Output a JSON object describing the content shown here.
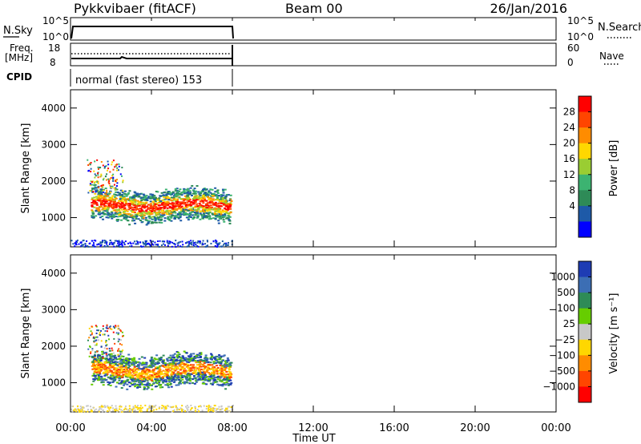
{
  "header": {
    "station": "Pykkvibaer (fitACF)",
    "beam": "Beam 00",
    "date": "26/Jan/2016"
  },
  "panels": {
    "nsky": {
      "left_label": "N.Sky",
      "left_ticks": [
        "10^5",
        "10^0"
      ],
      "right_ticks": [
        "10^5",
        "10^0"
      ],
      "right_label": "N.Search"
    },
    "freq": {
      "left_label_1": "Freq.",
      "left_label_2": "[MHz]",
      "left_ticks": [
        "18",
        "8"
      ],
      "right_ticks": [
        "60",
        "0"
      ],
      "right_label": "Nave"
    },
    "cpid": {
      "left_label": "CPID",
      "text": "normal (fast stereo) 153"
    }
  },
  "chart_data": [
    {
      "type": "heatmap",
      "name": "power",
      "ylabel": "Slant Range [km]",
      "xlabel": "Time UT",
      "xlim_hours": [
        0,
        24
      ],
      "ylim": [
        200,
        4500
      ],
      "yticks": [
        "4000",
        "3000",
        "2000",
        "1000"
      ],
      "xtick_labels": [
        "00:00",
        "04:00",
        "08:00",
        "12:00",
        "16:00",
        "20:00",
        "00:00"
      ],
      "data_extent_hours": [
        0,
        8
      ],
      "colorbar": {
        "label": "Power [dB]",
        "ticks": [
          "28",
          "24",
          "20",
          "16",
          "12",
          "8",
          "4"
        ],
        "colors": [
          "#ff0000",
          "#ff4500",
          "#ff8c00",
          "#ffd700",
          "#9acd32",
          "#3cb371",
          "#2e8b57",
          "#1e5aa8",
          "#0000ff"
        ]
      }
    },
    {
      "type": "heatmap",
      "name": "velocity",
      "ylabel": "Slant Range [km]",
      "xlabel": "Time UT",
      "xlim_hours": [
        0,
        24
      ],
      "ylim": [
        200,
        4500
      ],
      "yticks": [
        "4000",
        "3000",
        "2000",
        "1000"
      ],
      "xtick_labels": [
        "00:00",
        "04:00",
        "08:00",
        "12:00",
        "16:00",
        "20:00",
        "00:00"
      ],
      "data_extent_hours": [
        0,
        8
      ],
      "colorbar": {
        "label": "Velocity [m s⁻¹]",
        "ticks": [
          "1000",
          "500",
          "100",
          "25",
          "−25",
          "−100",
          "−500",
          "−1000"
        ],
        "colors": [
          "#1e3cb4",
          "#3c6eb4",
          "#2e8b57",
          "#66cd00",
          "#c8c8c8",
          "#ffd700",
          "#ff8c00",
          "#ff4500",
          "#ff0000"
        ]
      }
    }
  ]
}
